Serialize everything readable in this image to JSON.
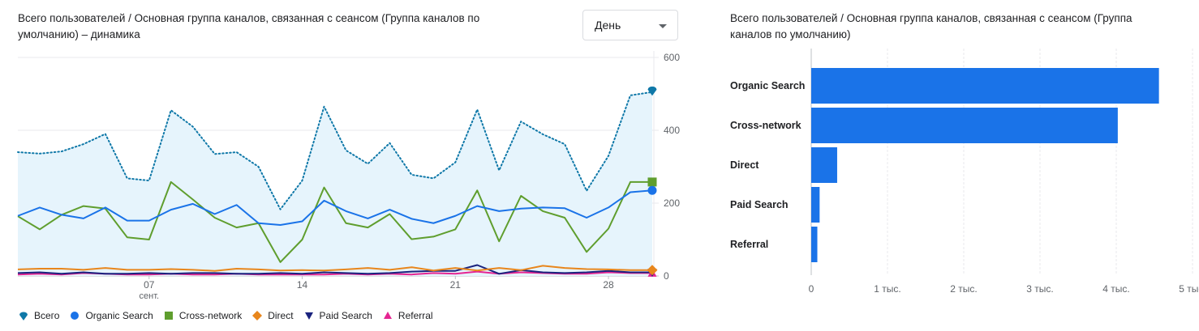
{
  "dropdown": {
    "value": "День"
  },
  "colors": {
    "total": "#0f78a8",
    "organic": "#1a73e8",
    "cross": "#5f9e2e",
    "direct": "#e8861c",
    "paid": "#1a237e",
    "referral": "#e52592",
    "bar": "#1a73e8",
    "grid": "#e8eaed",
    "axis_text": "#5f6368",
    "area_fill": "#e6f4fc"
  },
  "chart_data": [
    {
      "type": "line",
      "title": "Всего пользователей / Основная группа каналов, связанная с сеансом (Группа каналов по умолчанию) – динамика",
      "x": [
        "01",
        "02",
        "03",
        "04",
        "05",
        "06",
        "07",
        "08",
        "09",
        "10",
        "11",
        "12",
        "13",
        "14",
        "15",
        "16",
        "17",
        "18",
        "19",
        "20",
        "21",
        "22",
        "23",
        "24",
        "25",
        "26",
        "27",
        "28",
        "29",
        "30"
      ],
      "x_ticks": [
        {
          "index": 6,
          "label": "07",
          "sub": "сент."
        },
        {
          "index": 13,
          "label": "14",
          "sub": ""
        },
        {
          "index": 20,
          "label": "21",
          "sub": ""
        },
        {
          "index": 27,
          "label": "28",
          "sub": ""
        }
      ],
      "y_ticks": [
        "0",
        "200",
        "400",
        "600"
      ],
      "ylim": [
        0,
        600
      ],
      "y_axis_side": "right",
      "legend_position": "bottom",
      "series": [
        {
          "name": "Всего",
          "style": "dotted-area",
          "marker": "pin",
          "values": [
            340,
            336,
            342,
            362,
            390,
            268,
            262,
            455,
            410,
            335,
            340,
            300,
            183,
            262,
            465,
            345,
            308,
            365,
            278,
            268,
            312,
            457,
            290,
            424,
            389,
            362,
            234,
            330,
            496,
            505
          ]
        },
        {
          "name": "Organic Search",
          "style": "solid",
          "marker": "circle",
          "values": [
            165,
            188,
            168,
            158,
            188,
            152,
            152,
            182,
            198,
            170,
            195,
            145,
            140,
            150,
            207,
            178,
            158,
            182,
            157,
            145,
            165,
            192,
            178,
            185,
            188,
            186,
            160,
            188,
            230,
            235
          ]
        },
        {
          "name": "Cross-network",
          "style": "solid",
          "marker": "square",
          "values": [
            164,
            128,
            168,
            192,
            185,
            106,
            100,
            258,
            210,
            160,
            133,
            145,
            38,
            100,
            243,
            145,
            133,
            170,
            101,
            108,
            128,
            235,
            95,
            220,
            178,
            160,
            66,
            130,
            258,
            258
          ]
        },
        {
          "name": "Direct",
          "style": "solid",
          "marker": "diamond",
          "values": [
            18,
            20,
            20,
            17,
            22,
            17,
            17,
            19,
            17,
            14,
            20,
            18,
            15,
            16,
            15,
            18,
            22,
            17,
            24,
            15,
            22,
            15,
            22,
            16,
            28,
            22,
            19,
            18,
            16,
            16
          ]
        },
        {
          "name": "Paid Search",
          "style": "solid",
          "marker": "triangle-down",
          "values": [
            8,
            10,
            6,
            10,
            6,
            6,
            8,
            6,
            8,
            8,
            6,
            6,
            8,
            6,
            10,
            8,
            6,
            8,
            12,
            14,
            14,
            30,
            6,
            16,
            10,
            8,
            10,
            14,
            10,
            10
          ]
        },
        {
          "name": "Referral",
          "style": "solid",
          "marker": "triangle-up",
          "values": [
            4,
            6,
            4,
            8,
            6,
            4,
            4,
            6,
            4,
            4,
            6,
            4,
            4,
            4,
            4,
            6,
            4,
            6,
            4,
            8,
            6,
            12,
            6,
            10,
            8,
            6,
            6,
            10,
            8,
            8
          ]
        }
      ]
    },
    {
      "type": "bar",
      "orientation": "horizontal",
      "title": "Всего пользователей / Основная группа каналов, связанная с сеансом (Группа каналов по умолчанию)",
      "categories": [
        "Organic Search",
        "Cross-network",
        "Direct",
        "Paid Search",
        "Referral"
      ],
      "values": [
        4560,
        4020,
        340,
        110,
        80
      ],
      "x_ticks": [
        "0",
        "1 тыс.",
        "2 тыс.",
        "3 тыс.",
        "4 тыс.",
        "5 тыс."
      ],
      "xlim": [
        0,
        5000
      ]
    }
  ]
}
